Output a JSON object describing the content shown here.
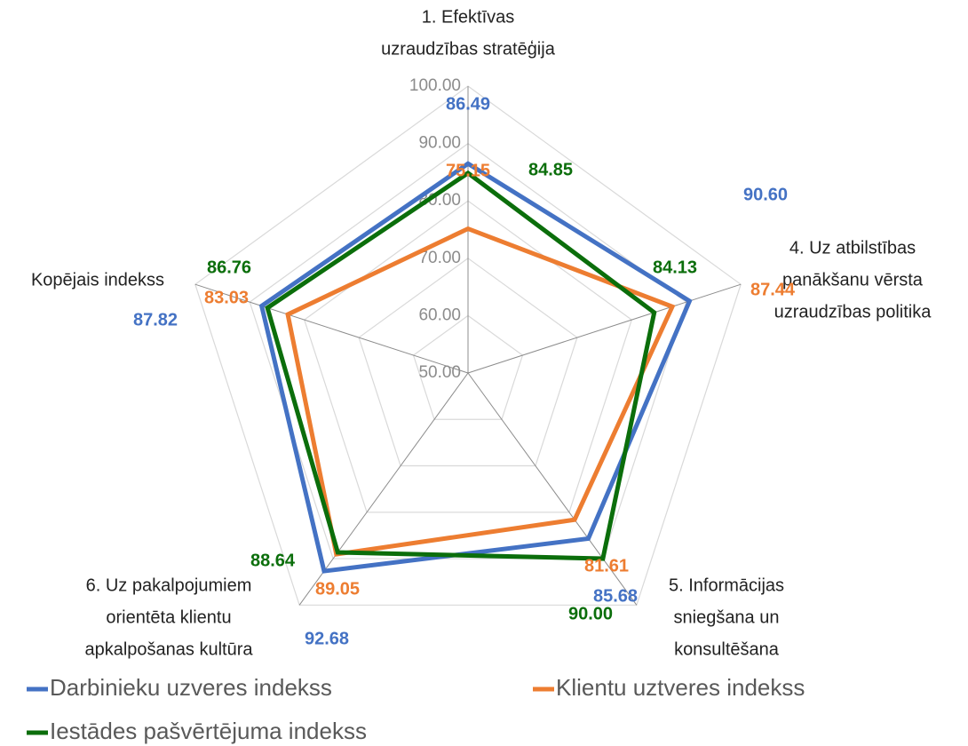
{
  "chart_data": {
    "type": "radar",
    "categories": [
      [
        "1. Efektīvas",
        "uzraudzības stratēģija"
      ],
      [
        "4. Uz atbilstības",
        "panākšanu vērsta",
        "uzraudzības politika"
      ],
      [
        "5. Informācijas",
        "sniegšana un",
        "konsultēšana"
      ],
      [
        "6. Uz pakalpojumiem",
        "orientēta klientu",
        "apkalpošanas kultūra"
      ],
      [
        "Kopējais indekss"
      ]
    ],
    "series": [
      {
        "name": "Darbinieku uzveres indekss",
        "color": "#4472c4",
        "values": [
          86.49,
          90.6,
          85.68,
          92.68,
          87.82
        ],
        "value_labels": [
          "86.49",
          "90.60",
          "85.68",
          "92.68",
          "87.82"
        ]
      },
      {
        "name": "Klientu uztveres indekss",
        "color": "#ed7d31",
        "values": [
          75.15,
          87.44,
          81.61,
          89.05,
          83.03
        ],
        "value_labels": [
          "75.15",
          "87.44",
          "81.61",
          "89.05",
          "83.03"
        ]
      },
      {
        "name": "Iestādes pašvērtējuma indekss",
        "color": "#0b6e0b",
        "values": [
          84.85,
          84.13,
          90.0,
          88.64,
          86.76
        ],
        "value_labels": [
          "84.85",
          "84.13",
          "90.00",
          "88.64",
          "86.76"
        ]
      }
    ],
    "ylim": [
      50,
      100
    ],
    "yticks": [
      {
        "value": 50,
        "label": "50.00"
      },
      {
        "value": 60,
        "label": "60.00"
      },
      {
        "value": 70,
        "label": "70.00"
      },
      {
        "value": 80,
        "label": "80.00"
      },
      {
        "value": 90,
        "label": "90.00"
      },
      {
        "value": 100,
        "label": "100.00"
      }
    ],
    "grid": true
  }
}
